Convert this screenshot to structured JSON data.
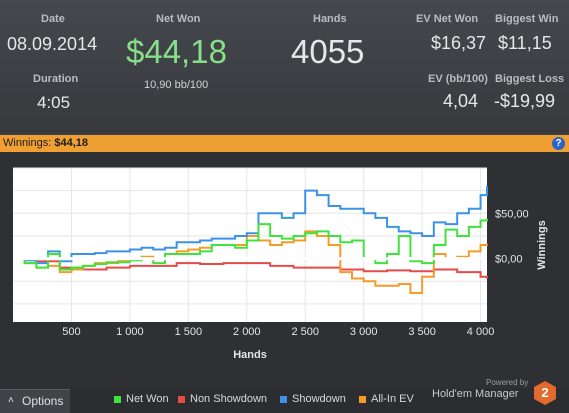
{
  "stats": {
    "date_label": "Date",
    "date_value": "08.09.2014",
    "duration_label": "Duration",
    "duration_value": "4:05",
    "netwon_label": "Net Won",
    "netwon_value": "$44,18",
    "netwon_sub": "10,90 bb/100",
    "hands_label": "Hands",
    "hands_value": "4055",
    "ev_net_label": "EV Net Won",
    "ev_net_value": "$16,37",
    "biggest_win_label": "Biggest Win",
    "biggest_win_value": "$11,15",
    "ev_bb_label": "EV (bb/100)",
    "ev_bb_value": "4,04",
    "biggest_loss_label": "Biggest Loss",
    "biggest_loss_value": "-$19,99"
  },
  "banner": {
    "label": "Winnings:",
    "value": "$44,18",
    "help_icon": "?"
  },
  "chart_data": {
    "type": "line",
    "xlabel": "Hands",
    "ylabel": "Winnings",
    "x_ticks": [
      "500",
      "1 000",
      "1 500",
      "2 000",
      "2 500",
      "3 000",
      "3 500",
      "4 000"
    ],
    "y_ticks": [
      "$50,00",
      "$0,00"
    ],
    "xlim": [
      0,
      4055
    ],
    "ylim": [
      -70,
      100
    ],
    "grid": true,
    "colors": {
      "net_won": "#3ee33e",
      "non_showdown": "#e84a4a",
      "showdown": "#3b92e8",
      "allin_ev": "#f39c2b"
    },
    "series": [
      {
        "name": "Net Won",
        "x": [
          0,
          100,
          200,
          300,
          400,
          500,
          600,
          700,
          800,
          900,
          1000,
          1100,
          1200,
          1300,
          1400,
          1500,
          1600,
          1700,
          1800,
          1900,
          2000,
          2100,
          2200,
          2300,
          2400,
          2500,
          2600,
          2700,
          2800,
          2900,
          3000,
          3100,
          3200,
          3300,
          3400,
          3500,
          3600,
          3700,
          3800,
          3900,
          4000,
          4055
        ],
        "y": [
          0,
          -5,
          -10,
          5,
          -12,
          -10,
          -8,
          -6,
          -4,
          -4,
          -2,
          0,
          -5,
          5,
          5,
          5,
          8,
          15,
          15,
          12,
          20,
          38,
          25,
          22,
          25,
          28,
          30,
          25,
          18,
          20,
          0,
          -5,
          5,
          25,
          -3,
          -5,
          15,
          32,
          25,
          35,
          42,
          44
        ]
      },
      {
        "name": "Non Showdown",
        "x": [
          0,
          200,
          400,
          600,
          800,
          1000,
          1200,
          1400,
          1600,
          1800,
          2000,
          2200,
          2400,
          2600,
          2800,
          3000,
          3200,
          3400,
          3600,
          3800,
          4000,
          4055
        ],
        "y": [
          0,
          -3,
          -10,
          -12,
          -10,
          -8,
          -8,
          -5,
          -6,
          -5,
          -5,
          -8,
          -10,
          -10,
          -12,
          -14,
          -13,
          -14,
          -12,
          -15,
          -20,
          -22
        ]
      },
      {
        "name": "Showdown",
        "x": [
          0,
          100,
          200,
          300,
          400,
          500,
          600,
          700,
          800,
          900,
          1000,
          1100,
          1200,
          1300,
          1400,
          1500,
          1600,
          1700,
          1800,
          1900,
          2000,
          2100,
          2200,
          2300,
          2400,
          2500,
          2600,
          2700,
          2800,
          2900,
          3000,
          3100,
          3200,
          3300,
          3400,
          3500,
          3600,
          3700,
          3800,
          3900,
          4000,
          4055
        ],
        "y": [
          0,
          -2,
          -5,
          8,
          -3,
          5,
          5,
          6,
          8,
          8,
          10,
          12,
          10,
          12,
          18,
          18,
          20,
          22,
          22,
          25,
          28,
          50,
          50,
          45,
          50,
          75,
          70,
          58,
          55,
          55,
          50,
          45,
          35,
          30,
          28,
          25,
          40,
          38,
          50,
          55,
          70,
          80
        ]
      },
      {
        "name": "All-In EV",
        "x": [
          0,
          100,
          200,
          300,
          400,
          500,
          600,
          700,
          800,
          900,
          1000,
          1100,
          1200,
          1300,
          1400,
          1500,
          1600,
          1700,
          1800,
          1900,
          2000,
          2100,
          2200,
          2300,
          2400,
          2500,
          2600,
          2700,
          2800,
          2900,
          3000,
          3100,
          3200,
          3300,
          3400,
          3500,
          3600,
          3700,
          3800,
          3900,
          4000,
          4055
        ],
        "y": [
          0,
          -5,
          -10,
          -8,
          -15,
          -12,
          -8,
          -5,
          -5,
          -2,
          0,
          2,
          0,
          5,
          8,
          10,
          12,
          15,
          15,
          15,
          25,
          20,
          15,
          18,
          20,
          30,
          25,
          15,
          -15,
          -22,
          -25,
          -30,
          -30,
          -28,
          -38,
          -20,
          5,
          0,
          2,
          8,
          15,
          16
        ]
      }
    ]
  },
  "footer": {
    "options_label": "Options",
    "options_icon": "chevron-up-icon",
    "legend": [
      "Net Won",
      "Non Showdown",
      "Showdown",
      "All-In EV"
    ],
    "powered_by": "Powered by",
    "brand": "Hold'em Manager",
    "brand_logo_text": "2"
  }
}
